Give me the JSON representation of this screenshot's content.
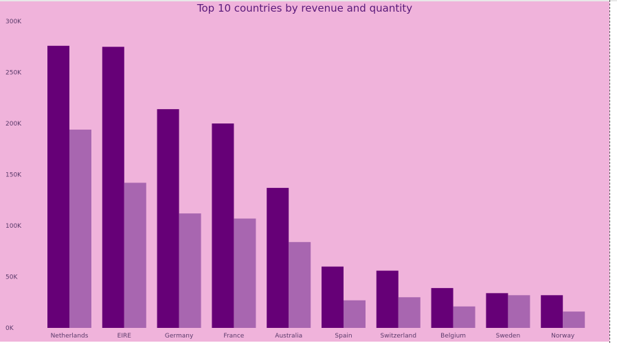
{
  "chart_data": {
    "type": "bar",
    "title": "Top 10 countries by revenue and quantity",
    "xlabel": "",
    "ylabel": "",
    "ylim": [
      0,
      300000
    ],
    "yticks": [
      0,
      50000,
      100000,
      150000,
      200000,
      250000,
      300000
    ],
    "ytick_labels": [
      "0K",
      "50K",
      "100K",
      "150K",
      "200K",
      "250K",
      "300K"
    ],
    "categories": [
      "Netherlands",
      "EIRE",
      "Germany",
      "France",
      "Australia",
      "Spain",
      "Switzerland",
      "Belgium",
      "Sweden",
      "Norway"
    ],
    "series": [
      {
        "color": "#660077",
        "values": [
          276000,
          275000,
          214000,
          200000,
          137000,
          60000,
          56000,
          39000,
          34000,
          32000
        ]
      },
      {
        "color": "#a866b0",
        "values": [
          194000,
          142000,
          112000,
          107000,
          84000,
          27000,
          30000,
          21000,
          32000,
          16000
        ]
      }
    ],
    "grid": false,
    "legend": "none"
  }
}
